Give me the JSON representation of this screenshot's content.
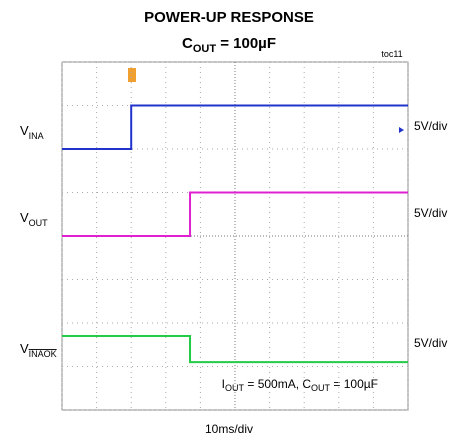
{
  "chart_data": {
    "type": "line",
    "title": "POWER-UP RESPONSE",
    "subtitle": {
      "main": "C",
      "sub": "OUT",
      "rest": " = 100µF"
    },
    "figure_id": "toc11",
    "x_scale": "10ms/div",
    "annotation": {
      "a": "I",
      "a_sub": "OUT",
      "b": " = 500mA, C",
      "b_sub": "OUT",
      "c": " = 100µF"
    },
    "xlim": [
      0,
      100
    ],
    "ylim": [
      0,
      8
    ],
    "xticks": [
      0,
      10,
      20,
      30,
      40,
      50,
      60,
      70,
      80,
      90,
      100
    ],
    "yticks": [
      0,
      1,
      2,
      3,
      4,
      5,
      6,
      7,
      8
    ],
    "grid": true,
    "series": [
      {
        "name": {
          "main": "V",
          "sub": "INA"
        },
        "scale": "5V/div",
        "color": "#2233cc",
        "x": [
          0,
          20,
          20,
          100
        ],
        "values": [
          6,
          6,
          7,
          7
        ]
      },
      {
        "name": {
          "main": "V",
          "sub": "OUT"
        },
        "scale": "5V/div",
        "color": "#e020d0",
        "x": [
          0,
          37,
          37,
          100
        ],
        "values": [
          4,
          4,
          5,
          5
        ]
      },
      {
        "name": {
          "main": "V",
          "sub": "INAOK"
        },
        "scale": "5V/div",
        "color": "#22cc44",
        "x": [
          0,
          37,
          37,
          100
        ],
        "values": [
          1.7,
          1.7,
          1.1,
          1.1
        ]
      }
    ]
  }
}
